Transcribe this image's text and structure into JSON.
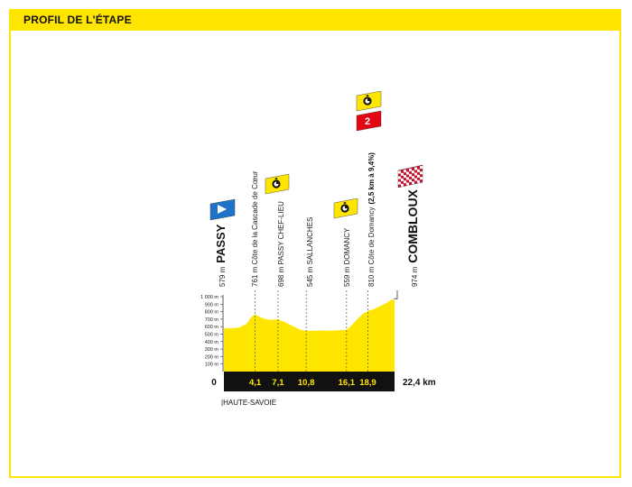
{
  "header": {
    "title": "PROFIL DE L'ÉTAPE"
  },
  "colors": {
    "accent": "#ffe600",
    "band": "#111111",
    "start_flag": "#1e72c7",
    "kom_flag": "#e30613",
    "finish_flag": "#c8102e"
  },
  "region": "|HAUTE-SAVOIE",
  "chart_data": {
    "type": "area",
    "title": "",
    "xlabel": "",
    "ylabel": "",
    "xlim": [
      0,
      22.4
    ],
    "ylim": [
      0,
      1000
    ],
    "yticks": [
      "1 000 m",
      "900 m",
      "800 m",
      "700 m",
      "600 m",
      "500 m",
      "400 m",
      "300 m",
      "200 m",
      "100 m"
    ],
    "ytick_values": [
      1000,
      900,
      800,
      700,
      600,
      500,
      400,
      300,
      200,
      100
    ],
    "start_label": "0",
    "end_label": "22,4 km",
    "km_marks": [
      {
        "km": 4.1,
        "label": "4,1"
      },
      {
        "km": 7.1,
        "label": "7,1"
      },
      {
        "km": 10.8,
        "label": "10,8"
      },
      {
        "km": 16.1,
        "label": "16,1"
      },
      {
        "km": 18.9,
        "label": "18,9"
      }
    ],
    "profile": [
      {
        "x": 0,
        "y": 579
      },
      {
        "x": 1,
        "y": 580
      },
      {
        "x": 2,
        "y": 588
      },
      {
        "x": 3,
        "y": 640
      },
      {
        "x": 3.6,
        "y": 730
      },
      {
        "x": 4.1,
        "y": 761
      },
      {
        "x": 4.8,
        "y": 725
      },
      {
        "x": 5.5,
        "y": 700
      },
      {
        "x": 6.2,
        "y": 690
      },
      {
        "x": 7.1,
        "y": 698
      },
      {
        "x": 7.8,
        "y": 670
      },
      {
        "x": 8.6,
        "y": 630
      },
      {
        "x": 9.4,
        "y": 590
      },
      {
        "x": 10,
        "y": 560
      },
      {
        "x": 10.8,
        "y": 545
      },
      {
        "x": 12,
        "y": 545
      },
      {
        "x": 13,
        "y": 550
      },
      {
        "x": 14,
        "y": 546
      },
      {
        "x": 15,
        "y": 552
      },
      {
        "x": 16.1,
        "y": 559
      },
      {
        "x": 16.8,
        "y": 620
      },
      {
        "x": 17.5,
        "y": 700
      },
      {
        "x": 18.2,
        "y": 770
      },
      {
        "x": 18.9,
        "y": 810
      },
      {
        "x": 19.6,
        "y": 830
      },
      {
        "x": 20.4,
        "y": 870
      },
      {
        "x": 21.2,
        "y": 910
      },
      {
        "x": 21.8,
        "y": 945
      },
      {
        "x": 22.4,
        "y": 974
      }
    ],
    "waypoints": [
      {
        "km": 0,
        "text": "579 m",
        "name": "PASSY",
        "bold": true,
        "flag": "start"
      },
      {
        "km": 4.1,
        "text": "761 m Côte de la Cascade de Cœur",
        "flag": "none"
      },
      {
        "km": 7.1,
        "text": "698 m PASSY CHEF-LIEU",
        "flag": "sprint"
      },
      {
        "km": 10.8,
        "text": "545 m SALLANCHES",
        "flag": "none"
      },
      {
        "km": 16.1,
        "text": "559 m DOMANCY",
        "flag": "sprint"
      },
      {
        "km": 18.9,
        "text": "810 m Côte de Domancy",
        "detail": "(2,5 km à 9,4%)",
        "flag": "kom",
        "kom_category": "2"
      },
      {
        "km": 22.4,
        "text": "974 m",
        "name": "COMBLOUX",
        "bold": true,
        "flag": "finish"
      }
    ]
  }
}
